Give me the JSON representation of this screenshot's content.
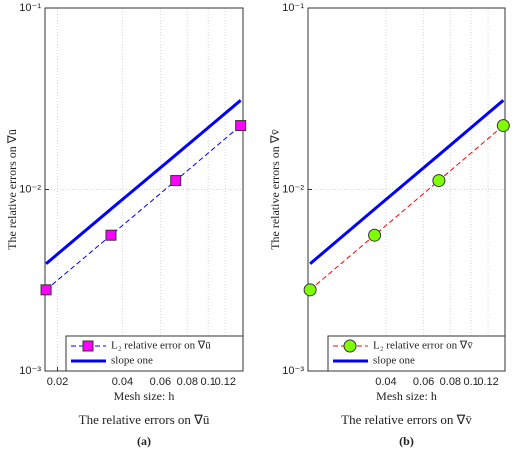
{
  "chart_data": [
    {
      "type": "line",
      "y_label": "The relative errors on ∇ū",
      "x_label": "Mesh size: h",
      "caption": "The relative errors on ∇ū",
      "panel": "(a)",
      "x": [
        0.0177,
        0.0354,
        0.0707,
        0.1414
      ],
      "series": [
        {
          "name": "L₂ relative error on ∇ū",
          "color": "#0000ff",
          "dash": true,
          "marker": "square",
          "marker_color": "#ff00ff",
          "values": [
            0.0028,
            0.0056,
            0.0112,
            0.0225
          ]
        },
        {
          "name": "slope one",
          "color": "#0000ff",
          "dash": false,
          "values": [
            0.0039,
            0.0078,
            0.0155,
            0.031
          ]
        }
      ],
      "xlim": [
        0.0175,
        0.145
      ],
      "ylim": [
        0.001,
        0.1
      ],
      "xticks": [
        0.02,
        0.04,
        0.06,
        0.08,
        0.1,
        0.12
      ],
      "yticks": [
        {
          "value": 0.001,
          "label": "10⁻³"
        },
        {
          "value": 0.01,
          "label": "10⁻²"
        },
        {
          "value": 0.1,
          "label": "10⁻¹"
        }
      ],
      "log_x": true,
      "log_y": true,
      "grid": true,
      "legend": "lower right"
    },
    {
      "type": "line",
      "y_label": "The relative errors on ∇v̄",
      "x_label": "Mesh size: h",
      "caption": "The relative errors on ∇v̄",
      "panel": "(b)",
      "x": [
        0.0177,
        0.0354,
        0.0707,
        0.1414
      ],
      "series": [
        {
          "name": "L₂ relative error on ∇v̄",
          "color": "#ff0000",
          "dash": true,
          "marker": "circle",
          "marker_color": "#80ff00",
          "values": [
            0.0028,
            0.0056,
            0.0112,
            0.0225
          ]
        },
        {
          "name": "slope one",
          "color": "#0000ff",
          "dash": false,
          "values": [
            0.0039,
            0.0078,
            0.0155,
            0.031
          ]
        }
      ],
      "xlim": [
        0.0173,
        0.144
      ],
      "ylim": [
        0.001,
        0.1
      ],
      "xticks": [
        0.04,
        0.06,
        0.08,
        0.1,
        0.12
      ],
      "yticks": [
        {
          "value": 0.001,
          "label": "10⁻³"
        },
        {
          "value": 0.01,
          "label": "10⁻²"
        },
        {
          "value": 0.1,
          "label": "10⁻¹"
        }
      ],
      "log_x": true,
      "log_y": true,
      "grid": true,
      "legend": "lower right"
    }
  ]
}
